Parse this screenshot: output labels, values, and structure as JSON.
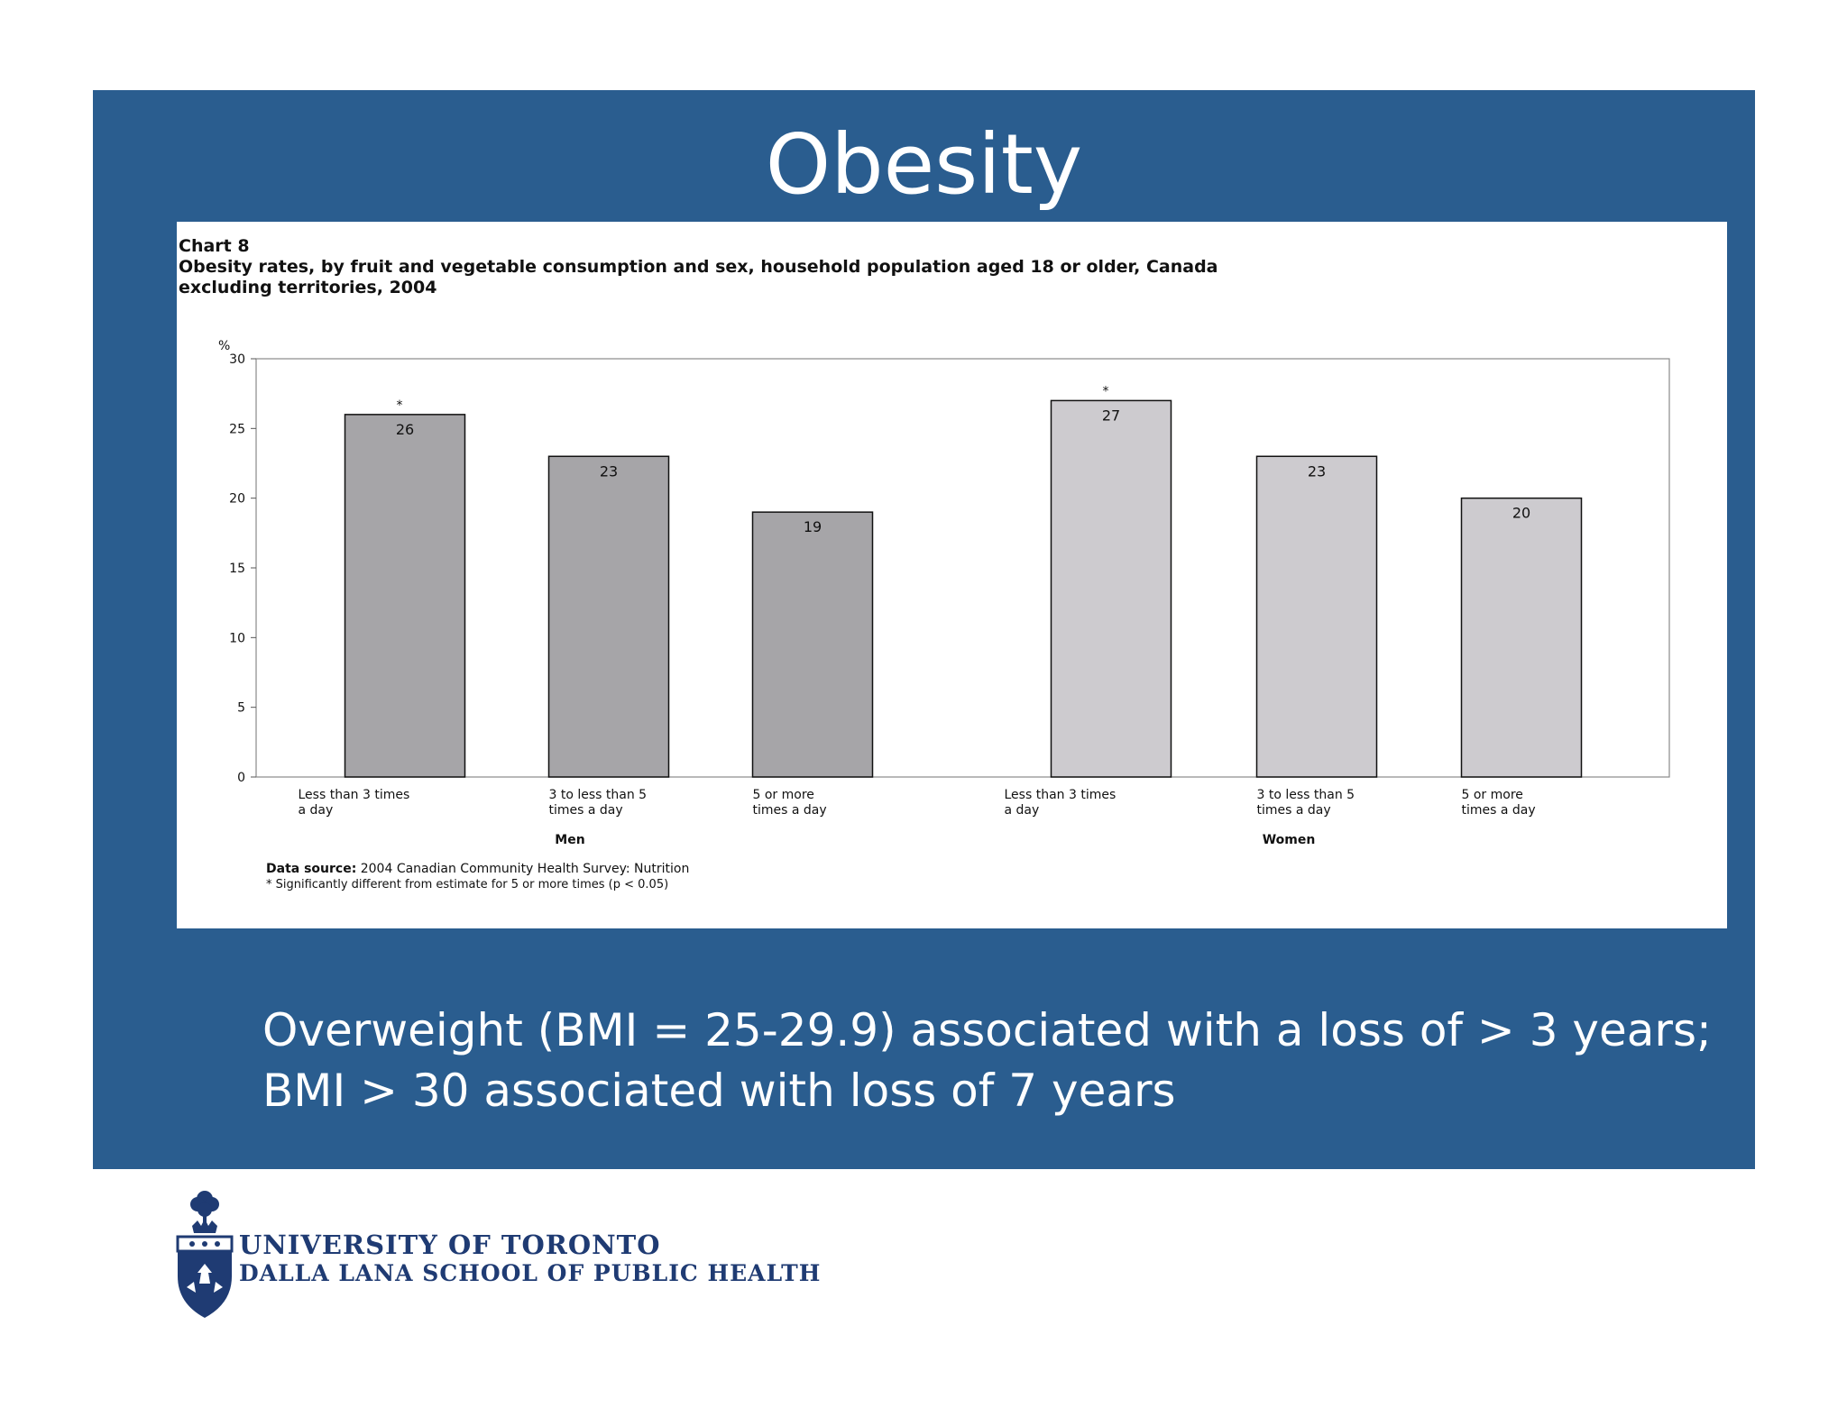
{
  "slide": {
    "title": "Obesity",
    "summary_line_1": "Overweight (BMI = 25-29.9) associated with a loss of > 3 years;",
    "summary_line_2": "BMI > 30 associated with loss of 7 years"
  },
  "chart_data": {
    "type": "bar",
    "chart_label": "Chart 8",
    "title_line_1": "Obesity rates, by fruit and vegetable consumption and sex, household population aged 18 or older, Canada",
    "title_line_2": "excluding territories, 2004",
    "y_unit": "%",
    "ylim": [
      0,
      30
    ],
    "yticks": [
      0,
      5,
      10,
      15,
      20,
      25,
      30
    ],
    "grid": false,
    "groups": [
      {
        "name": "Men",
        "color": "#a6a5a8",
        "bars": [
          {
            "label_1": "Less than 3 times",
            "label_2": "a day",
            "value": 26,
            "value_label": "26",
            "significant": true
          },
          {
            "label_1": "3 to less than 5",
            "label_2": "times a day",
            "value": 23,
            "value_label": "23",
            "significant": false
          },
          {
            "label_1": "5 or more",
            "label_2": "times a day",
            "value": 19,
            "value_label": "19",
            "significant": false
          }
        ]
      },
      {
        "name": "Women",
        "color": "#cdcbcf",
        "bars": [
          {
            "label_1": "Less than 3 times",
            "label_2": "a day",
            "value": 27,
            "value_label": "27",
            "significant": true
          },
          {
            "label_1": "3 to less than 5",
            "label_2": "times a day",
            "value": 23,
            "value_label": "23",
            "significant": false
          },
          {
            "label_1": "5 or more",
            "label_2": "times a day",
            "value": 20,
            "value_label": "20",
            "significant": false
          }
        ]
      }
    ],
    "significance_marker": "*",
    "source_label": "Data source:",
    "source_text": " 2004 Canadian Community Health Survey: Nutrition",
    "footnote": "* Significantly different from estimate for 5 or more times (p < 0.05)"
  },
  "logo": {
    "line_1": "UNIVERSITY OF TORONTO",
    "line_2": "DALLA LANA SCHOOL OF PUBLIC HEALTH",
    "icon": "university-crest-icon"
  },
  "colors": {
    "panel": "#2a5d8f",
    "text_light": "#ffffff",
    "logo_blue": "#1f3b73"
  }
}
